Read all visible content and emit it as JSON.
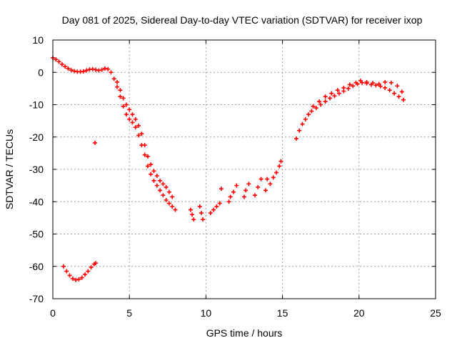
{
  "chart_data": {
    "type": "scatter",
    "title": "Day 081 of 2025, Sidereal Day-to-day VTEC variation (SDTVAR) for receiver ixop",
    "xlabel": "GPS time / hours",
    "ylabel": "SDTVAR / TECUs",
    "xlim": [
      0,
      25
    ],
    "ylim": [
      -70,
      10
    ],
    "xticks": [
      0,
      5,
      10,
      15,
      20,
      25
    ],
    "yticks": [
      10,
      0,
      -10,
      -20,
      -30,
      -40,
      -50,
      -60,
      -70
    ],
    "grid": true,
    "marker": "+",
    "color": "#ff0000",
    "series": [
      {
        "name": "main-arc",
        "x": [
          0.0,
          0.2,
          0.4,
          0.6,
          0.8,
          1.0,
          1.2,
          1.4,
          1.6,
          1.8,
          2.0,
          2.2,
          2.4,
          2.6,
          2.8,
          3.0,
          3.2,
          3.4,
          3.6,
          3.8,
          4.0,
          4.2,
          4.4,
          4.6,
          4.8,
          5.0,
          5.2,
          5.4,
          5.6,
          5.8,
          6.0,
          6.2,
          6.4,
          6.6,
          6.8,
          7.0,
          7.2,
          7.4,
          7.6,
          7.8,
          8.0
        ],
        "y": [
          4.5,
          4.0,
          3.3,
          2.5,
          1.8,
          1.2,
          0.7,
          0.4,
          0.2,
          0.2,
          0.3,
          0.6,
          0.9,
          1.0,
          0.8,
          0.6,
          0.8,
          1.2,
          1.0,
          0.0,
          -2.0,
          -4.5,
          -7.5,
          -10.5,
          -13.0,
          -14.5,
          -15.5,
          -17.0,
          -19.5,
          -22.5,
          -25.5,
          -29.0,
          -31.5,
          -33.5,
          -35.0,
          -36.5,
          -38.0,
          -39.5,
          -40.5,
          -41.5,
          -42.5
        ]
      },
      {
        "name": "upper-band",
        "x": [
          4.2,
          4.4,
          4.6,
          4.8,
          5.0,
          5.2,
          5.4,
          5.6,
          5.8,
          6.0,
          6.2,
          6.4,
          6.6,
          6.8,
          7.0,
          7.2,
          7.4,
          7.6,
          7.8
        ],
        "y": [
          -3.0,
          -5.5,
          -8.0,
          -10.0,
          -11.5,
          -13.0,
          -14.5,
          -16.5,
          -19.0,
          -22.5,
          -26.0,
          -28.5,
          -30.5,
          -32.0,
          -33.5,
          -34.5,
          -35.5,
          -37.0,
          -38.5
        ]
      },
      {
        "name": "low-arc",
        "x": [
          0.7,
          0.9,
          1.1,
          1.3,
          1.5,
          1.7,
          1.9,
          2.1,
          2.3,
          2.5,
          2.7,
          2.8
        ],
        "y": [
          -60.0,
          -61.5,
          -62.8,
          -63.8,
          -64.2,
          -64.0,
          -63.5,
          -62.5,
          -61.5,
          -60.3,
          -59.3,
          -59.0
        ]
      },
      {
        "name": "isolated",
        "x": [
          2.75
        ],
        "y": [
          -21.8
        ]
      },
      {
        "name": "night-clusters",
        "x": [
          9.0,
          9.1,
          9.2,
          9.6,
          9.7,
          9.8,
          10.3,
          10.5,
          10.7,
          10.9,
          11.0,
          11.5,
          11.6,
          11.8,
          12.0,
          12.5,
          12.6,
          12.8,
          13.2,
          13.4,
          13.6,
          13.9,
          14.0,
          14.2,
          14.4,
          14.6,
          14.8,
          14.9
        ],
        "y": [
          -42.5,
          -44.0,
          -45.5,
          -41.5,
          -43.5,
          -45.5,
          -43.5,
          -42.5,
          -41.5,
          -40.5,
          -36.0,
          -40.0,
          -38.5,
          -37.0,
          -35.0,
          -38.5,
          -36.5,
          -34.5,
          -38.0,
          -35.5,
          -33.0,
          -36.5,
          -33.0,
          -34.5,
          -32.5,
          -31.0,
          -29.0,
          -27.5
        ]
      },
      {
        "name": "recovery-arc",
        "x": [
          15.9,
          16.1,
          16.3,
          16.5,
          16.7,
          16.9,
          17.2,
          17.5,
          17.8,
          18.1,
          18.4,
          18.7,
          19.0,
          19.3,
          19.6,
          19.9,
          20.2,
          20.5,
          20.8,
          21.1,
          21.4,
          21.7,
          22.0,
          22.3,
          22.6,
          22.9
        ],
        "y": [
          -20.5,
          -18.0,
          -16.0,
          -14.5,
          -13.0,
          -12.0,
          -11.0,
          -10.0,
          -9.0,
          -8.0,
          -7.3,
          -6.5,
          -5.8,
          -5.0,
          -4.2,
          -3.6,
          -3.2,
          -3.4,
          -3.8,
          -4.0,
          -4.3,
          -4.8,
          -5.5,
          -6.5,
          -7.5,
          -8.5
        ]
      },
      {
        "name": "recovery-upper",
        "x": [
          17.0,
          17.4,
          17.8,
          18.2,
          18.6,
          19.0,
          19.4,
          19.8,
          20.1,
          20.5,
          20.9,
          21.3,
          21.7,
          22.1,
          22.5,
          22.8
        ],
        "y": [
          -10.5,
          -9.0,
          -7.5,
          -6.5,
          -5.5,
          -4.8,
          -3.8,
          -3.2,
          -2.6,
          -3.0,
          -3.3,
          -3.6,
          -3.0,
          -3.2,
          -4.2,
          -6.0
        ]
      }
    ]
  }
}
